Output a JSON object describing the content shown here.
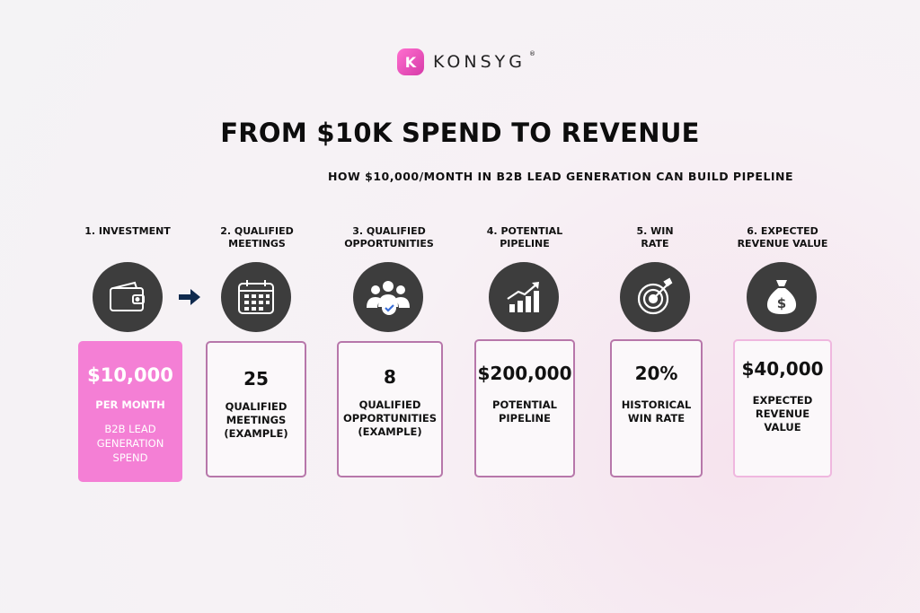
{
  "brand": {
    "name": "KONSYG",
    "mark": "K",
    "reg": "®"
  },
  "title": "FROM $10K SPEND TO REVENUE",
  "subtitle": "HOW $10,000/MONTH IN B2B LEAD GENERATION CAN BUILD PIPELINE",
  "steps": [
    {
      "label_1": "1. INVESTMENT",
      "label_2": "",
      "icon": "wallet-icon",
      "value": "$10,000",
      "desc_1": "PER MONTH",
      "desc_2": "",
      "desc_3": "",
      "note_1": "B2B LEAD",
      "note_2": "GENERATION",
      "note_3": "SPEND"
    },
    {
      "label_1": "2. QUALIFIED",
      "label_2": "MEETINGS",
      "icon": "calendar-icon",
      "value": "25",
      "desc_1": "QUALIFIED",
      "desc_2": "MEETINGS",
      "desc_3": "(EXAMPLE)"
    },
    {
      "label_1": "3. QUALIFIED",
      "label_2": "OPPORTUNITIES",
      "icon": "team-check-icon",
      "value": "8",
      "desc_1": "QUALIFIED",
      "desc_2": "OPPORTUNITIES",
      "desc_3": "(EXAMPLE)"
    },
    {
      "label_1": "4. POTENTIAL",
      "label_2": "PIPELINE",
      "icon": "growth-chart-icon",
      "value": "$200,000",
      "desc_1": "POTENTIAL",
      "desc_2": "PIPELINE",
      "desc_3": ""
    },
    {
      "label_1": "5. WIN",
      "label_2": "RATE",
      "icon": "target-icon",
      "value": "20%",
      "desc_1": "HISTORICAL",
      "desc_2": "WIN RATE",
      "desc_3": ""
    },
    {
      "label_1": "6. EXPECTED",
      "label_2": "REVENUE VALUE",
      "icon": "money-bag-icon",
      "value": "$40,000",
      "desc_1": "EXPECTED",
      "desc_2": "REVENUE",
      "desc_3": "VALUE"
    }
  ],
  "colors": {
    "accent_pink": "#f47fd5",
    "card_border": "#b777aa",
    "icon_bg": "#3d3d3d",
    "arrow": "#0f2a4d"
  }
}
